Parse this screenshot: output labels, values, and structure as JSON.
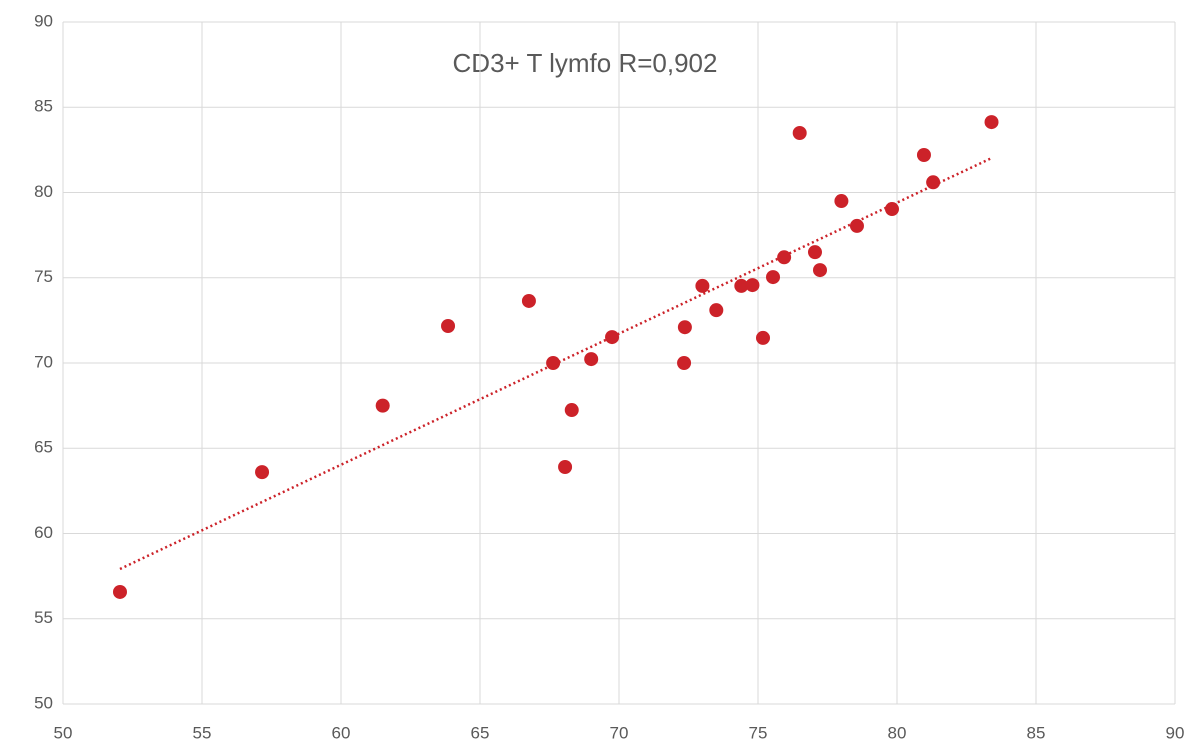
{
  "chart_data": {
    "type": "scatter",
    "title": "CD3+ T lymfo R=0,902",
    "x": [
      52.05,
      57.16,
      61.5,
      63.85,
      66.76,
      67.63,
      68.06,
      68.3,
      69.0,
      69.75,
      72.34,
      72.37,
      73.0,
      73.5,
      74.4,
      74.8,
      75.18,
      75.54,
      75.94,
      76.5,
      77.05,
      77.23,
      78.0,
      78.56,
      79.82,
      80.97,
      81.3,
      83.4
    ],
    "series": [
      {
        "color": "#cc2229",
        "values": [
          56.57,
          63.6,
          67.5,
          72.17,
          73.64,
          70.0,
          63.9,
          67.24,
          70.23,
          71.52,
          70.0,
          72.1,
          74.52,
          73.1,
          74.52,
          74.57,
          71.47,
          75.04,
          76.2,
          83.49,
          76.5,
          75.45,
          79.5,
          78.04,
          79.03,
          82.2,
          80.6,
          84.13
        ]
      }
    ],
    "trendline": {
      "x": [
        52.05,
        83.4
      ],
      "y": [
        57.92,
        82.02
      ],
      "color": "#cc2229"
    },
    "xlim": [
      50,
      90
    ],
    "xticks": [
      50,
      55,
      60,
      65,
      70,
      75,
      80,
      85,
      90
    ],
    "ylim": [
      50,
      90
    ],
    "yticks": [
      50,
      55,
      60,
      65,
      70,
      75,
      80,
      85,
      90
    ],
    "grid": true
  }
}
